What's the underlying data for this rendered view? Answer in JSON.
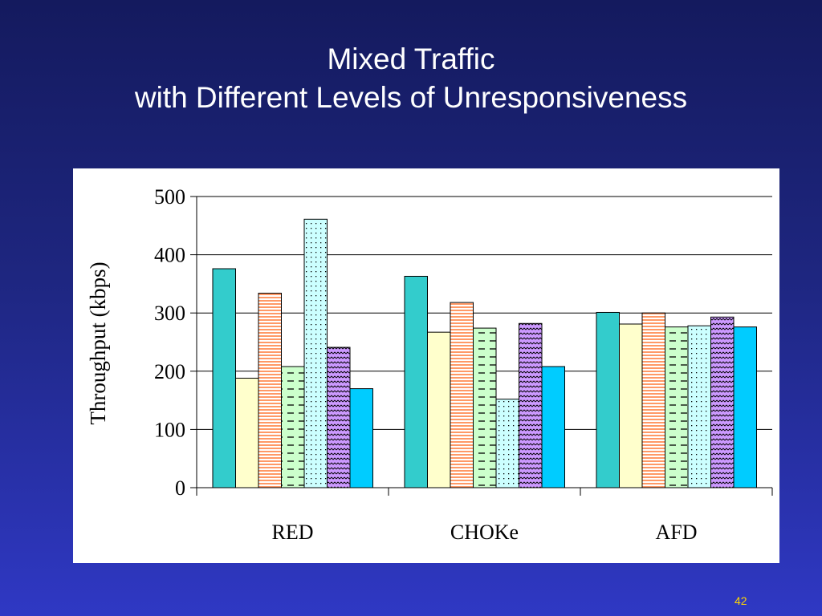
{
  "slide": {
    "title_line1": "Mixed Traffic",
    "title_line2": "with Different Levels of Unresponsiveness",
    "page_number": "42"
  },
  "chart_data": {
    "type": "bar",
    "categories": [
      "RED",
      "CHOKe",
      "AFD"
    ],
    "ylabel": "Throughput (kbps)",
    "ylim": [
      0,
      500
    ],
    "yticks": [
      0,
      100,
      200,
      300,
      400,
      500
    ],
    "grid": true,
    "series": [
      {
        "values": [
          376,
          363,
          301
        ],
        "color": "#33cccc",
        "pattern": "solid"
      },
      {
        "values": [
          188,
          267,
          281
        ],
        "color": "#ffffcc",
        "pattern": "solid"
      },
      {
        "values": [
          334,
          318,
          300
        ],
        "color": "#ff9966",
        "pattern": "horizontal-stripes"
      },
      {
        "values": [
          208,
          274,
          276
        ],
        "color": "#ccffcc",
        "pattern": "dashed-lines"
      },
      {
        "values": [
          461,
          152,
          278
        ],
        "color": "#ccffff",
        "pattern": "dots"
      },
      {
        "values": [
          241,
          282,
          293
        ],
        "color": "#cc99ff",
        "pattern": "waves"
      },
      {
        "values": [
          170,
          208,
          276
        ],
        "color": "#00ccff",
        "pattern": "solid"
      }
    ]
  }
}
